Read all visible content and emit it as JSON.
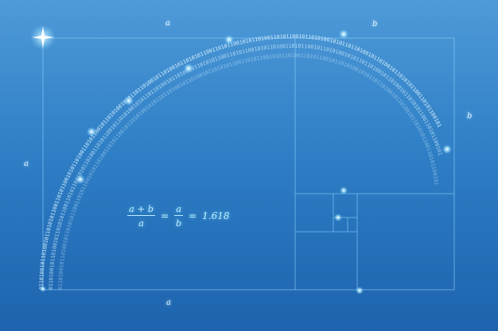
{
  "labels": {
    "top_a": "a",
    "top_b": "b",
    "left_a": "a",
    "right_b": "b",
    "bottom_a": "a"
  },
  "formula": {
    "frac1_num": "a + b",
    "frac1_den": "a",
    "eq1": "=",
    "frac2_num": "a",
    "frac2_den": "b",
    "eq2": "=",
    "value": "1.618"
  },
  "binary_text": "0110100101101001011010101100110101100101011010011010110010110101001010110110100101101001011010101100110101100101011010011010110010110101001010110110100101101001011010101100110101100101",
  "colors": {
    "background_top": "#4f9ad8",
    "background_bottom": "#1d63ad",
    "line": "#8fd3ff",
    "glow": "#dff6ff"
  }
}
